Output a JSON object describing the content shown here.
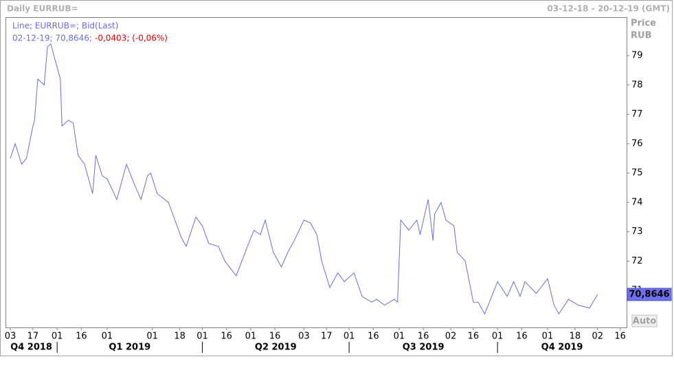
{
  "header": {
    "title": "Daily EURRUB=",
    "range": "03-12-18 - 20-12-19 (GMT)"
  },
  "controls": {
    "auto": "Auto"
  },
  "chart_data": {
    "type": "line",
    "legend": {
      "title": "Line; EURRUB=; Bid(Last)",
      "point": "02-12-19; 70,8646;",
      "change": "-0,0403; (-0,06%)",
      "change_color": "#e00000"
    },
    "y_axis_title": "Price",
    "y_axis_unit": "RUB",
    "last_value_label": "70,8646",
    "color": "#6b6be0",
    "x": [
      "2018-12-03",
      "2018-12-06",
      "2018-12-10",
      "2018-12-13",
      "2018-12-17",
      "2018-12-18",
      "2018-12-20",
      "2018-12-24",
      "2018-12-26",
      "2018-12-28",
      "2018-12-31",
      "2019-01-03",
      "2019-01-04",
      "2019-01-08",
      "2019-01-11",
      "2019-01-14",
      "2019-01-18",
      "2019-01-23",
      "2019-01-25",
      "2019-01-29",
      "2019-02-01",
      "2019-02-07",
      "2019-02-13",
      "2019-02-18",
      "2019-02-22",
      "2019-02-26",
      "2019-02-28",
      "2019-03-04",
      "2019-03-11",
      "2019-03-15",
      "2019-03-19",
      "2019-03-22",
      "2019-03-28",
      "2019-04-01",
      "2019-04-05",
      "2019-04-11",
      "2019-04-15",
      "2019-04-22",
      "2019-04-29",
      "2019-05-03",
      "2019-05-07",
      "2019-05-10",
      "2019-05-15",
      "2019-05-20",
      "2019-05-24",
      "2019-05-28",
      "2019-06-03",
      "2019-06-07",
      "2019-06-11",
      "2019-06-14",
      "2019-06-19",
      "2019-06-24",
      "2019-06-28",
      "2019-07-04",
      "2019-07-09",
      "2019-07-15",
      "2019-07-18",
      "2019-07-23",
      "2019-07-29",
      "2019-07-31",
      "2019-08-02",
      "2019-08-07",
      "2019-08-12",
      "2019-08-14",
      "2019-08-19",
      "2019-08-22",
      "2019-08-23",
      "2019-08-27",
      "2019-08-30",
      "2019-09-04",
      "2019-09-06",
      "2019-09-11",
      "2019-09-16",
      "2019-09-19",
      "2019-09-23",
      "2019-09-26",
      "2019-10-01",
      "2019-10-07",
      "2019-10-11",
      "2019-10-15",
      "2019-10-18",
      "2019-10-25",
      "2019-11-01",
      "2019-11-05",
      "2019-11-08",
      "2019-11-14",
      "2019-11-20",
      "2019-11-27",
      "2019-12-02"
    ],
    "values": [
      75.5,
      76.0,
      75.3,
      75.5,
      76.6,
      76.8,
      78.2,
      78.0,
      79.3,
      79.4,
      78.8,
      78.2,
      76.6,
      76.8,
      76.7,
      75.6,
      75.3,
      74.3,
      75.6,
      74.9,
      74.8,
      74.1,
      75.3,
      74.6,
      74.1,
      74.9,
      75.0,
      74.3,
      74.0,
      73.4,
      72.8,
      72.5,
      73.5,
      73.2,
      72.6,
      72.5,
      72.0,
      71.5,
      72.5,
      73.05,
      72.9,
      73.4,
      72.3,
      71.8,
      72.3,
      72.7,
      73.4,
      73.3,
      72.9,
      72.0,
      71.1,
      71.6,
      71.3,
      71.6,
      70.8,
      70.6,
      70.7,
      70.5,
      70.7,
      70.6,
      73.4,
      73.05,
      73.4,
      72.9,
      74.1,
      72.7,
      73.6,
      74.0,
      73.4,
      73.2,
      72.3,
      72.0,
      70.6,
      70.6,
      70.2,
      70.6,
      71.3,
      70.8,
      71.3,
      70.8,
      71.3,
      70.9,
      71.4,
      70.5,
      70.2,
      70.7,
      70.5,
      70.4,
      70.8646
    ],
    "xlim": [
      "2018-11-30",
      "2019-12-20"
    ],
    "ylim": [
      69.74,
      80.31
    ],
    "yticks": [
      71,
      72,
      73,
      74,
      75,
      76,
      77,
      78,
      79
    ],
    "xticks": [
      {
        "value": "2018-12-03",
        "label": "03"
      },
      {
        "value": "2018-12-17",
        "label": "17"
      },
      {
        "value": "2019-01-01",
        "label": "01"
      },
      {
        "value": "2019-01-16",
        "label": "16"
      },
      {
        "value": "2019-02-01",
        "label": "01"
      },
      {
        "value": "2019-03-01",
        "label": "01"
      },
      {
        "value": "2019-03-18",
        "label": "18"
      },
      {
        "value": "2019-04-01",
        "label": "01"
      },
      {
        "value": "2019-04-16",
        "label": "16"
      },
      {
        "value": "2019-05-01",
        "label": "01"
      },
      {
        "value": "2019-05-16",
        "label": "16"
      },
      {
        "value": "2019-06-03",
        "label": "03"
      },
      {
        "value": "2019-06-17",
        "label": "17"
      },
      {
        "value": "2019-07-01",
        "label": "01"
      },
      {
        "value": "2019-07-16",
        "label": "16"
      },
      {
        "value": "2019-08-01",
        "label": "01"
      },
      {
        "value": "2019-08-16",
        "label": "16"
      },
      {
        "value": "2019-09-02",
        "label": "02"
      },
      {
        "value": "2019-09-16",
        "label": "16"
      },
      {
        "value": "2019-10-01",
        "label": "01"
      },
      {
        "value": "2019-10-16",
        "label": "16"
      },
      {
        "value": "2019-11-01",
        "label": "01"
      },
      {
        "value": "2019-11-18",
        "label": "18"
      },
      {
        "value": "2019-12-02",
        "label": "02"
      },
      {
        "value": "2019-12-16",
        "label": "16"
      }
    ],
    "quarters": [
      {
        "value": "2018-10-01",
        "label": "Q4 2018"
      },
      {
        "value": "2019-01-01",
        "label": "Q1 2019"
      },
      {
        "value": "2019-04-01",
        "label": "Q2 2019"
      },
      {
        "value": "2019-07-01",
        "label": "Q3 2019"
      },
      {
        "value": "2019-10-01",
        "label": "Q4 2019"
      }
    ]
  }
}
